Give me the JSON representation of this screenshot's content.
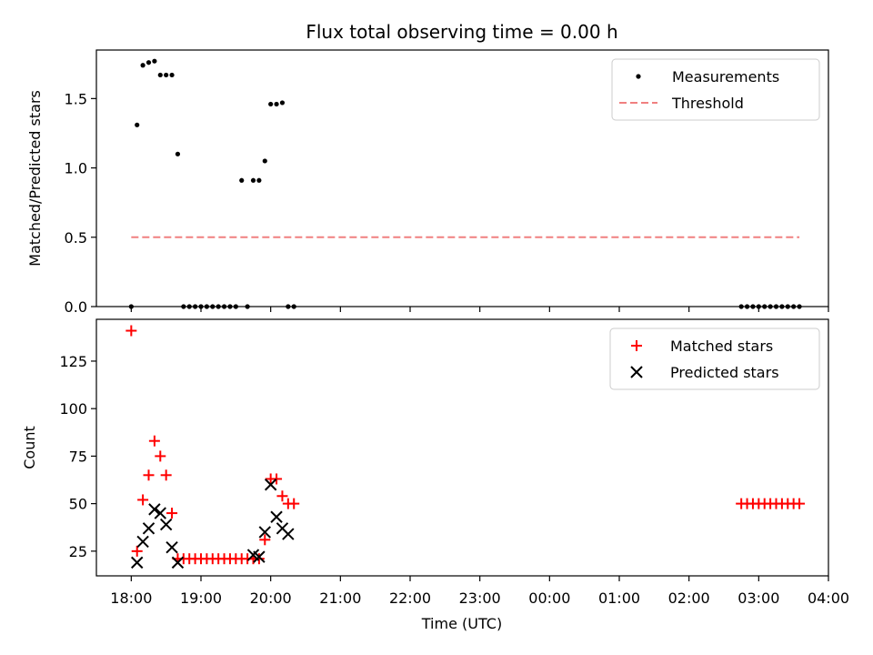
{
  "chart_data": [
    {
      "type": "scatter",
      "title": "Flux total observing time = 0.00 h",
      "xlabel": "",
      "ylabel": "Matched/Predicted stars",
      "x_axis": "time",
      "xlim": [
        "17:30",
        "04:00"
      ],
      "ylim": [
        0,
        1.85
      ],
      "yticks": [
        0.0,
        0.5,
        1.0,
        1.5
      ],
      "ytick_labels": [
        "0.0",
        "0.5",
        "1.0",
        "1.5"
      ],
      "xticks_labeled": false,
      "grid": false,
      "legend_position": "top-right",
      "series": [
        {
          "name": "Measurements",
          "kind": "points",
          "color": "#000000",
          "x": [
            "18:00",
            "18:05",
            "18:10",
            "18:15",
            "18:20",
            "18:25",
            "18:30",
            "18:35",
            "18:40",
            "18:45",
            "18:50",
            "18:55",
            "19:00",
            "19:05",
            "19:10",
            "19:15",
            "19:20",
            "19:25",
            "19:30",
            "19:35",
            "19:40",
            "19:45",
            "19:50",
            "19:55",
            "20:00",
            "20:05",
            "20:10",
            "20:15",
            "20:20",
            "02:45",
            "02:50",
            "02:55",
            "03:00",
            "03:05",
            "03:10",
            "03:15",
            "03:20",
            "03:25",
            "03:30",
            "03:35"
          ],
          "y": [
            0.0,
            1.31,
            1.74,
            1.76,
            1.77,
            1.67,
            1.67,
            1.67,
            1.1,
            0.0,
            0.0,
            0.0,
            0.0,
            0.0,
            0.0,
            0.0,
            0.0,
            0.0,
            0.0,
            0.91,
            0.0,
            0.91,
            0.91,
            1.05,
            1.46,
            1.46,
            1.47,
            0.0,
            0.0,
            0.0,
            0.0,
            0.0,
            0.0,
            0.0,
            0.0,
            0.0,
            0.0,
            0.0,
            0.0,
            0.0
          ]
        },
        {
          "name": "Threshold",
          "kind": "dashed-line",
          "color": "#f08080",
          "x": [
            "18:00",
            "03:35"
          ],
          "y": [
            0.5,
            0.5
          ]
        }
      ]
    },
    {
      "type": "scatter",
      "title": "",
      "xlabel": "Time (UTC)",
      "ylabel": "Count",
      "x_axis": "time",
      "xlim": [
        "17:30",
        "04:00"
      ],
      "ylim": [
        12,
        147
      ],
      "yticks": [
        25,
        50,
        75,
        100,
        125
      ],
      "ytick_labels": [
        "25",
        "50",
        "75",
        "100",
        "125"
      ],
      "xticks": [
        "18:00",
        "19:00",
        "20:00",
        "21:00",
        "22:00",
        "23:00",
        "00:00",
        "01:00",
        "02:00",
        "03:00",
        "04:00"
      ],
      "grid": false,
      "legend_position": "top-right",
      "series": [
        {
          "name": "Matched stars",
          "kind": "plus",
          "color": "#ff0000",
          "x": [
            "18:00",
            "18:05",
            "18:10",
            "18:15",
            "18:20",
            "18:25",
            "18:30",
            "18:35",
            "18:40",
            "18:45",
            "18:50",
            "18:55",
            "19:00",
            "19:05",
            "19:10",
            "19:15",
            "19:20",
            "19:25",
            "19:30",
            "19:35",
            "19:40",
            "19:45",
            "19:50",
            "19:55",
            "20:00",
            "20:05",
            "20:10",
            "20:15",
            "20:20",
            "02:45",
            "02:50",
            "02:55",
            "03:00",
            "03:05",
            "03:10",
            "03:15",
            "03:20",
            "03:25",
            "03:30",
            "03:35"
          ],
          "y": [
            141,
            25,
            52,
            65,
            83,
            75,
            65,
            45,
            21,
            21,
            21,
            21,
            21,
            21,
            21,
            21,
            21,
            21,
            21,
            21,
            21,
            21,
            21,
            31,
            63,
            63,
            54,
            50,
            50,
            50,
            50,
            50,
            50,
            50,
            50,
            50,
            50,
            50,
            50,
            50
          ]
        },
        {
          "name": "Predicted stars",
          "kind": "x",
          "color": "#000000",
          "x": [
            "18:05",
            "18:10",
            "18:15",
            "18:20",
            "18:25",
            "18:30",
            "18:35",
            "18:40",
            "19:45",
            "19:50",
            "19:55",
            "20:00",
            "20:05",
            "20:10",
            "20:15"
          ],
          "y": [
            19,
            30,
            37,
            47,
            45,
            39,
            27,
            19,
            23,
            22,
            35,
            60,
            43,
            37,
            34
          ]
        }
      ]
    }
  ]
}
